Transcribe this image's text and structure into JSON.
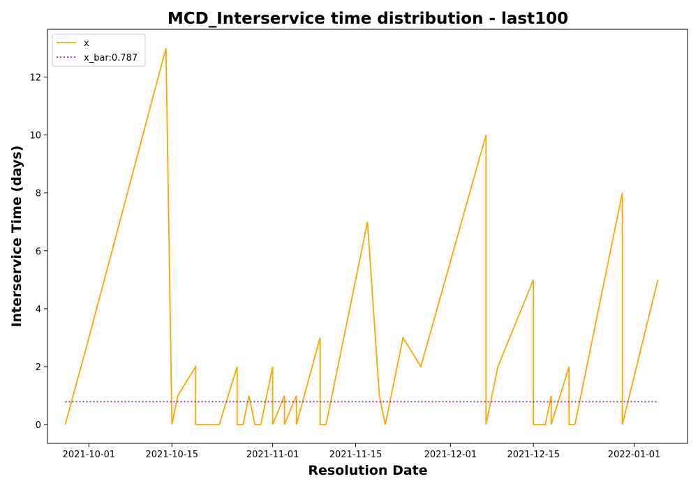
{
  "chart_data": {
    "type": "line",
    "title": "MCD_Interservice time distribution - last100",
    "xlabel": "Resolution Date",
    "ylabel": "Interservice Time (days)",
    "xlim": [
      "2021-09-24",
      "2022-01-10"
    ],
    "ylim": [
      -0.65,
      13.65
    ],
    "x_ticks": [
      "2021-10-01",
      "2021-10-15",
      "2021-11-01",
      "2021-11-15",
      "2021-12-01",
      "2021-12-15",
      "2022-01-01"
    ],
    "y_ticks": [
      0,
      2,
      4,
      6,
      8,
      10,
      12
    ],
    "colors": {
      "x": "#ffa500",
      "x_bar": "#800080"
    },
    "legend": {
      "position": "top-left",
      "entries": [
        "x",
        "x_bar:0.787"
      ]
    },
    "series": [
      {
        "name": "x",
        "style": "solid",
        "points": [
          [
            "2021-09-27",
            0
          ],
          [
            "2021-10-01",
            3
          ],
          [
            "2021-10-14",
            13
          ],
          [
            "2021-10-15",
            0
          ],
          [
            "2021-10-16",
            1
          ],
          [
            "2021-10-19",
            2
          ],
          [
            "2021-10-19",
            0
          ],
          [
            "2021-10-23",
            0
          ],
          [
            "2021-10-26",
            2
          ],
          [
            "2021-10-26",
            0
          ],
          [
            "2021-10-27",
            0
          ],
          [
            "2021-10-28",
            1
          ],
          [
            "2021-10-29",
            0
          ],
          [
            "2021-10-30",
            0
          ],
          [
            "2021-11-01",
            2
          ],
          [
            "2021-11-01",
            0
          ],
          [
            "2021-11-03",
            1
          ],
          [
            "2021-11-03",
            0
          ],
          [
            "2021-11-05",
            1
          ],
          [
            "2021-11-05",
            0
          ],
          [
            "2021-11-09",
            3
          ],
          [
            "2021-11-09",
            0
          ],
          [
            "2021-11-10",
            0
          ],
          [
            "2021-11-17",
            7
          ],
          [
            "2021-11-19",
            1
          ],
          [
            "2021-11-20",
            0
          ],
          [
            "2021-11-23",
            3
          ],
          [
            "2021-11-26",
            2
          ],
          [
            "2021-12-07",
            10
          ],
          [
            "2021-12-07",
            0
          ],
          [
            "2021-12-09",
            2
          ],
          [
            "2021-12-15",
            5
          ],
          [
            "2021-12-15",
            0
          ],
          [
            "2021-12-17",
            0
          ],
          [
            "2021-12-18",
            1
          ],
          [
            "2021-12-18",
            0
          ],
          [
            "2021-12-21",
            2
          ],
          [
            "2021-12-21",
            0
          ],
          [
            "2021-12-22",
            0
          ],
          [
            "2021-12-30",
            8
          ],
          [
            "2021-12-30",
            0
          ],
          [
            "2022-01-05",
            5
          ]
        ]
      },
      {
        "name": "x_bar:0.787",
        "style": "dotted",
        "points": [
          [
            "2021-09-27",
            0.787
          ],
          [
            "2022-01-05",
            0.787
          ]
        ]
      }
    ]
  }
}
